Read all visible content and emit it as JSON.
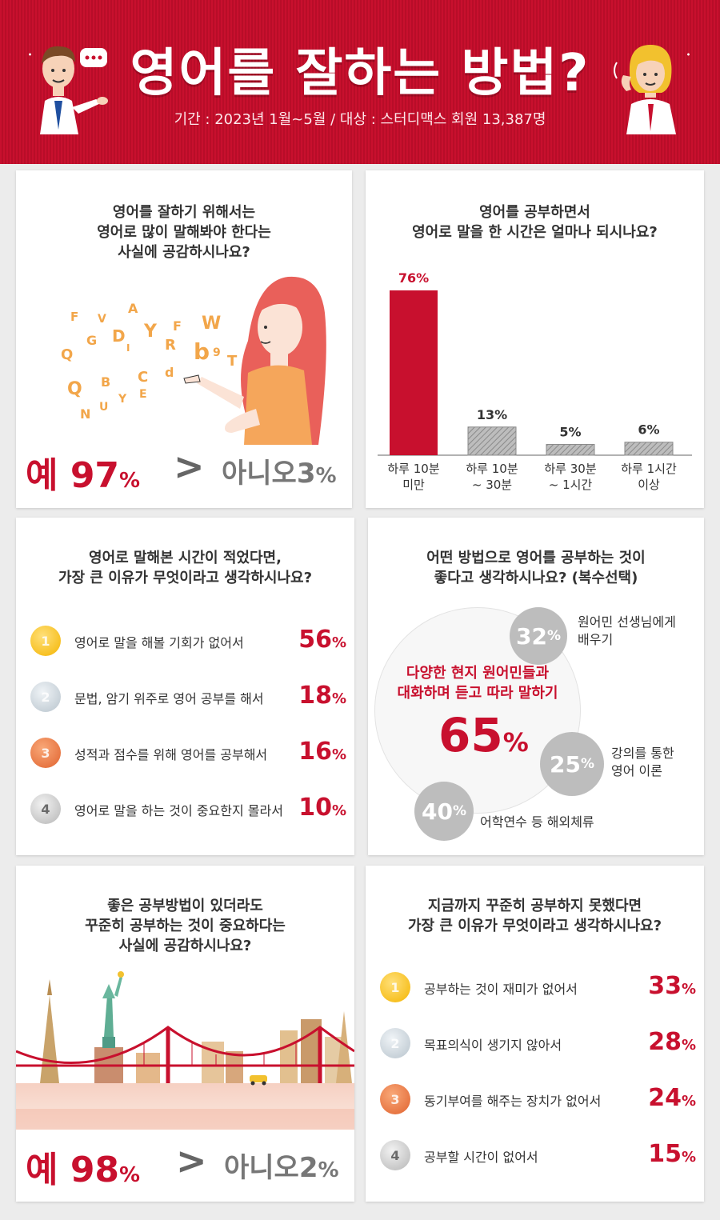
{
  "header": {
    "title": "영어를 잘하는 방법?",
    "subtitle": "기간 : 2023년 1월~5월 / 대상 : 스터디맥스 회원 13,387명",
    "colors": {
      "brand_red": "#c8102e"
    }
  },
  "panel1": {
    "question": [
      "영어를 잘하기 위해서는",
      "영어로 많이 말해봐야 한다는",
      "사실에 공감하시나요?"
    ],
    "yes_label": "예",
    "yes_value": "97",
    "no_label": "아니오",
    "no_value": "3",
    "percent": "%",
    "letters": [
      "F",
      "V",
      "A",
      "Y",
      "F",
      "W",
      "Q",
      "G",
      "D",
      "I",
      "R",
      "b",
      "9",
      "T",
      "Q",
      "B",
      "C",
      "d",
      "N",
      "U",
      "Y",
      "E"
    ]
  },
  "panel3": {
    "question": [
      "영어로 말해본 시간이 적었다면,",
      "가장 큰 이유가 무엇이라고 생각하시나요?"
    ],
    "items": [
      {
        "rank": "1",
        "label": "영어로 말을 해볼 기회가 없어서",
        "value": "56"
      },
      {
        "rank": "2",
        "label": "문법, 암기 위주로 영어 공부를 해서",
        "value": "18"
      },
      {
        "rank": "3",
        "label": "성적과 점수를 위해 영어를 공부해서",
        "value": "16"
      },
      {
        "rank": "4",
        "label": "영어로 말을 하는 것이 중요한지 몰라서",
        "value": "10"
      }
    ],
    "percent": "%"
  },
  "panel4": {
    "question": [
      "어떤 방법으로 영어를 공부하는 것이",
      "좋다고 생각하시나요? (복수선택)"
    ],
    "main_label": [
      "다양한 현지 원어민들과",
      "대화하며 듣고 따라 말하기"
    ],
    "main_value": "65",
    "bubbles": [
      {
        "value": "32",
        "label": [
          "원어민 선생님에게",
          "배우기"
        ]
      },
      {
        "value": "25",
        "label": [
          "강의를 통한",
          "영어 이론"
        ]
      },
      {
        "value": "40",
        "label": [
          "어학연수 등 해외체류"
        ]
      }
    ],
    "percent": "%"
  },
  "panel5": {
    "question": [
      "좋은 공부방법이 있더라도",
      "꾸준히 공부하는 것이 중요하다는",
      "사실에 공감하시나요?"
    ],
    "yes_label": "예",
    "yes_value": "98",
    "no_label": "아니오",
    "no_value": "2",
    "percent": "%"
  },
  "panel6": {
    "question": [
      "지금까지 꾸준히 공부하지 못했다면",
      "가장 큰 이유가 무엇이라고 생각하시나요?"
    ],
    "items": [
      {
        "rank": "1",
        "label": "공부하는 것이 재미가 없어서",
        "value": "33"
      },
      {
        "rank": "2",
        "label": "목표의식이 생기지 않아서",
        "value": "28"
      },
      {
        "rank": "3",
        "label": "동기부여를 해주는 장치가 없어서",
        "value": "24"
      },
      {
        "rank": "4",
        "label": "공부할 시간이 없어서",
        "value": "15"
      }
    ],
    "percent": "%"
  },
  "chart_data": [
    {
      "type": "bar",
      "title": "영어를 공부하면서 영어로 말을 한 시간은 얼마나 되시나요?",
      "title_lines": [
        "영어를 공부하면서",
        "영어로 말을 한 시간은 얼마나 되시나요?"
      ],
      "categories": [
        "하루 10분 미만",
        "하루 10분 ~ 30분",
        "하루 30분 ~ 1시간",
        "하루 1시간 이상"
      ],
      "category_lines": [
        [
          "하루 10분",
          "미만"
        ],
        [
          "하루 10분",
          "~ 30분"
        ],
        [
          "하루 30분",
          "~ 1시간"
        ],
        [
          "하루 1시간",
          "이상"
        ]
      ],
      "values": [
        76,
        13,
        5,
        6
      ],
      "value_labels": [
        "76%",
        "13%",
        "5%",
        "6%"
      ],
      "ylim": [
        0,
        76
      ],
      "grid": false,
      "colors": {
        "highlight": "#c8102e",
        "other": "#9e9e9e"
      }
    }
  ]
}
